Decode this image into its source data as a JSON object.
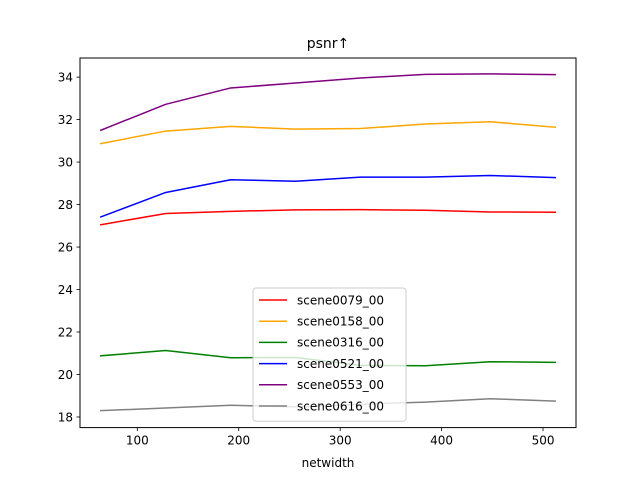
{
  "chart_data": {
    "type": "line",
    "title": "psnr↑",
    "xlabel": "netwidth",
    "ylabel": "",
    "x": [
      64,
      128,
      192,
      256,
      320,
      384,
      448,
      512
    ],
    "xlim": [
      43.5,
      532.5
    ],
    "ylim": [
      17.5,
      34.9
    ],
    "xticks": [
      100,
      200,
      300,
      400,
      500
    ],
    "yticks": [
      18,
      20,
      22,
      24,
      26,
      28,
      30,
      32,
      34
    ],
    "legend_position": "lower-center",
    "series": [
      {
        "name": "scene0079_00",
        "color": "#ff0000",
        "values": [
          27.05,
          27.58,
          27.68,
          27.75,
          27.76,
          27.73,
          27.65,
          27.64
        ]
      },
      {
        "name": "scene0158_00",
        "color": "#ffa500",
        "values": [
          30.87,
          31.46,
          31.68,
          31.55,
          31.58,
          31.79,
          31.9,
          31.64
        ]
      },
      {
        "name": "scene0316_00",
        "color": "#008000",
        "values": [
          20.88,
          21.13,
          20.79,
          20.8,
          20.43,
          20.41,
          20.6,
          20.57
        ]
      },
      {
        "name": "scene0521_00",
        "color": "#0000ff",
        "values": [
          27.42,
          28.57,
          29.17,
          29.1,
          29.29,
          29.29,
          29.37,
          29.27
        ]
      },
      {
        "name": "scene0553_00",
        "color": "#800080",
        "values": [
          31.5,
          32.72,
          33.49,
          33.72,
          33.96,
          34.13,
          34.15,
          34.12
        ]
      },
      {
        "name": "scene0616_00",
        "color": "#808080",
        "values": [
          18.3,
          18.42,
          18.55,
          18.48,
          18.6,
          18.7,
          18.86,
          18.75
        ]
      }
    ]
  }
}
